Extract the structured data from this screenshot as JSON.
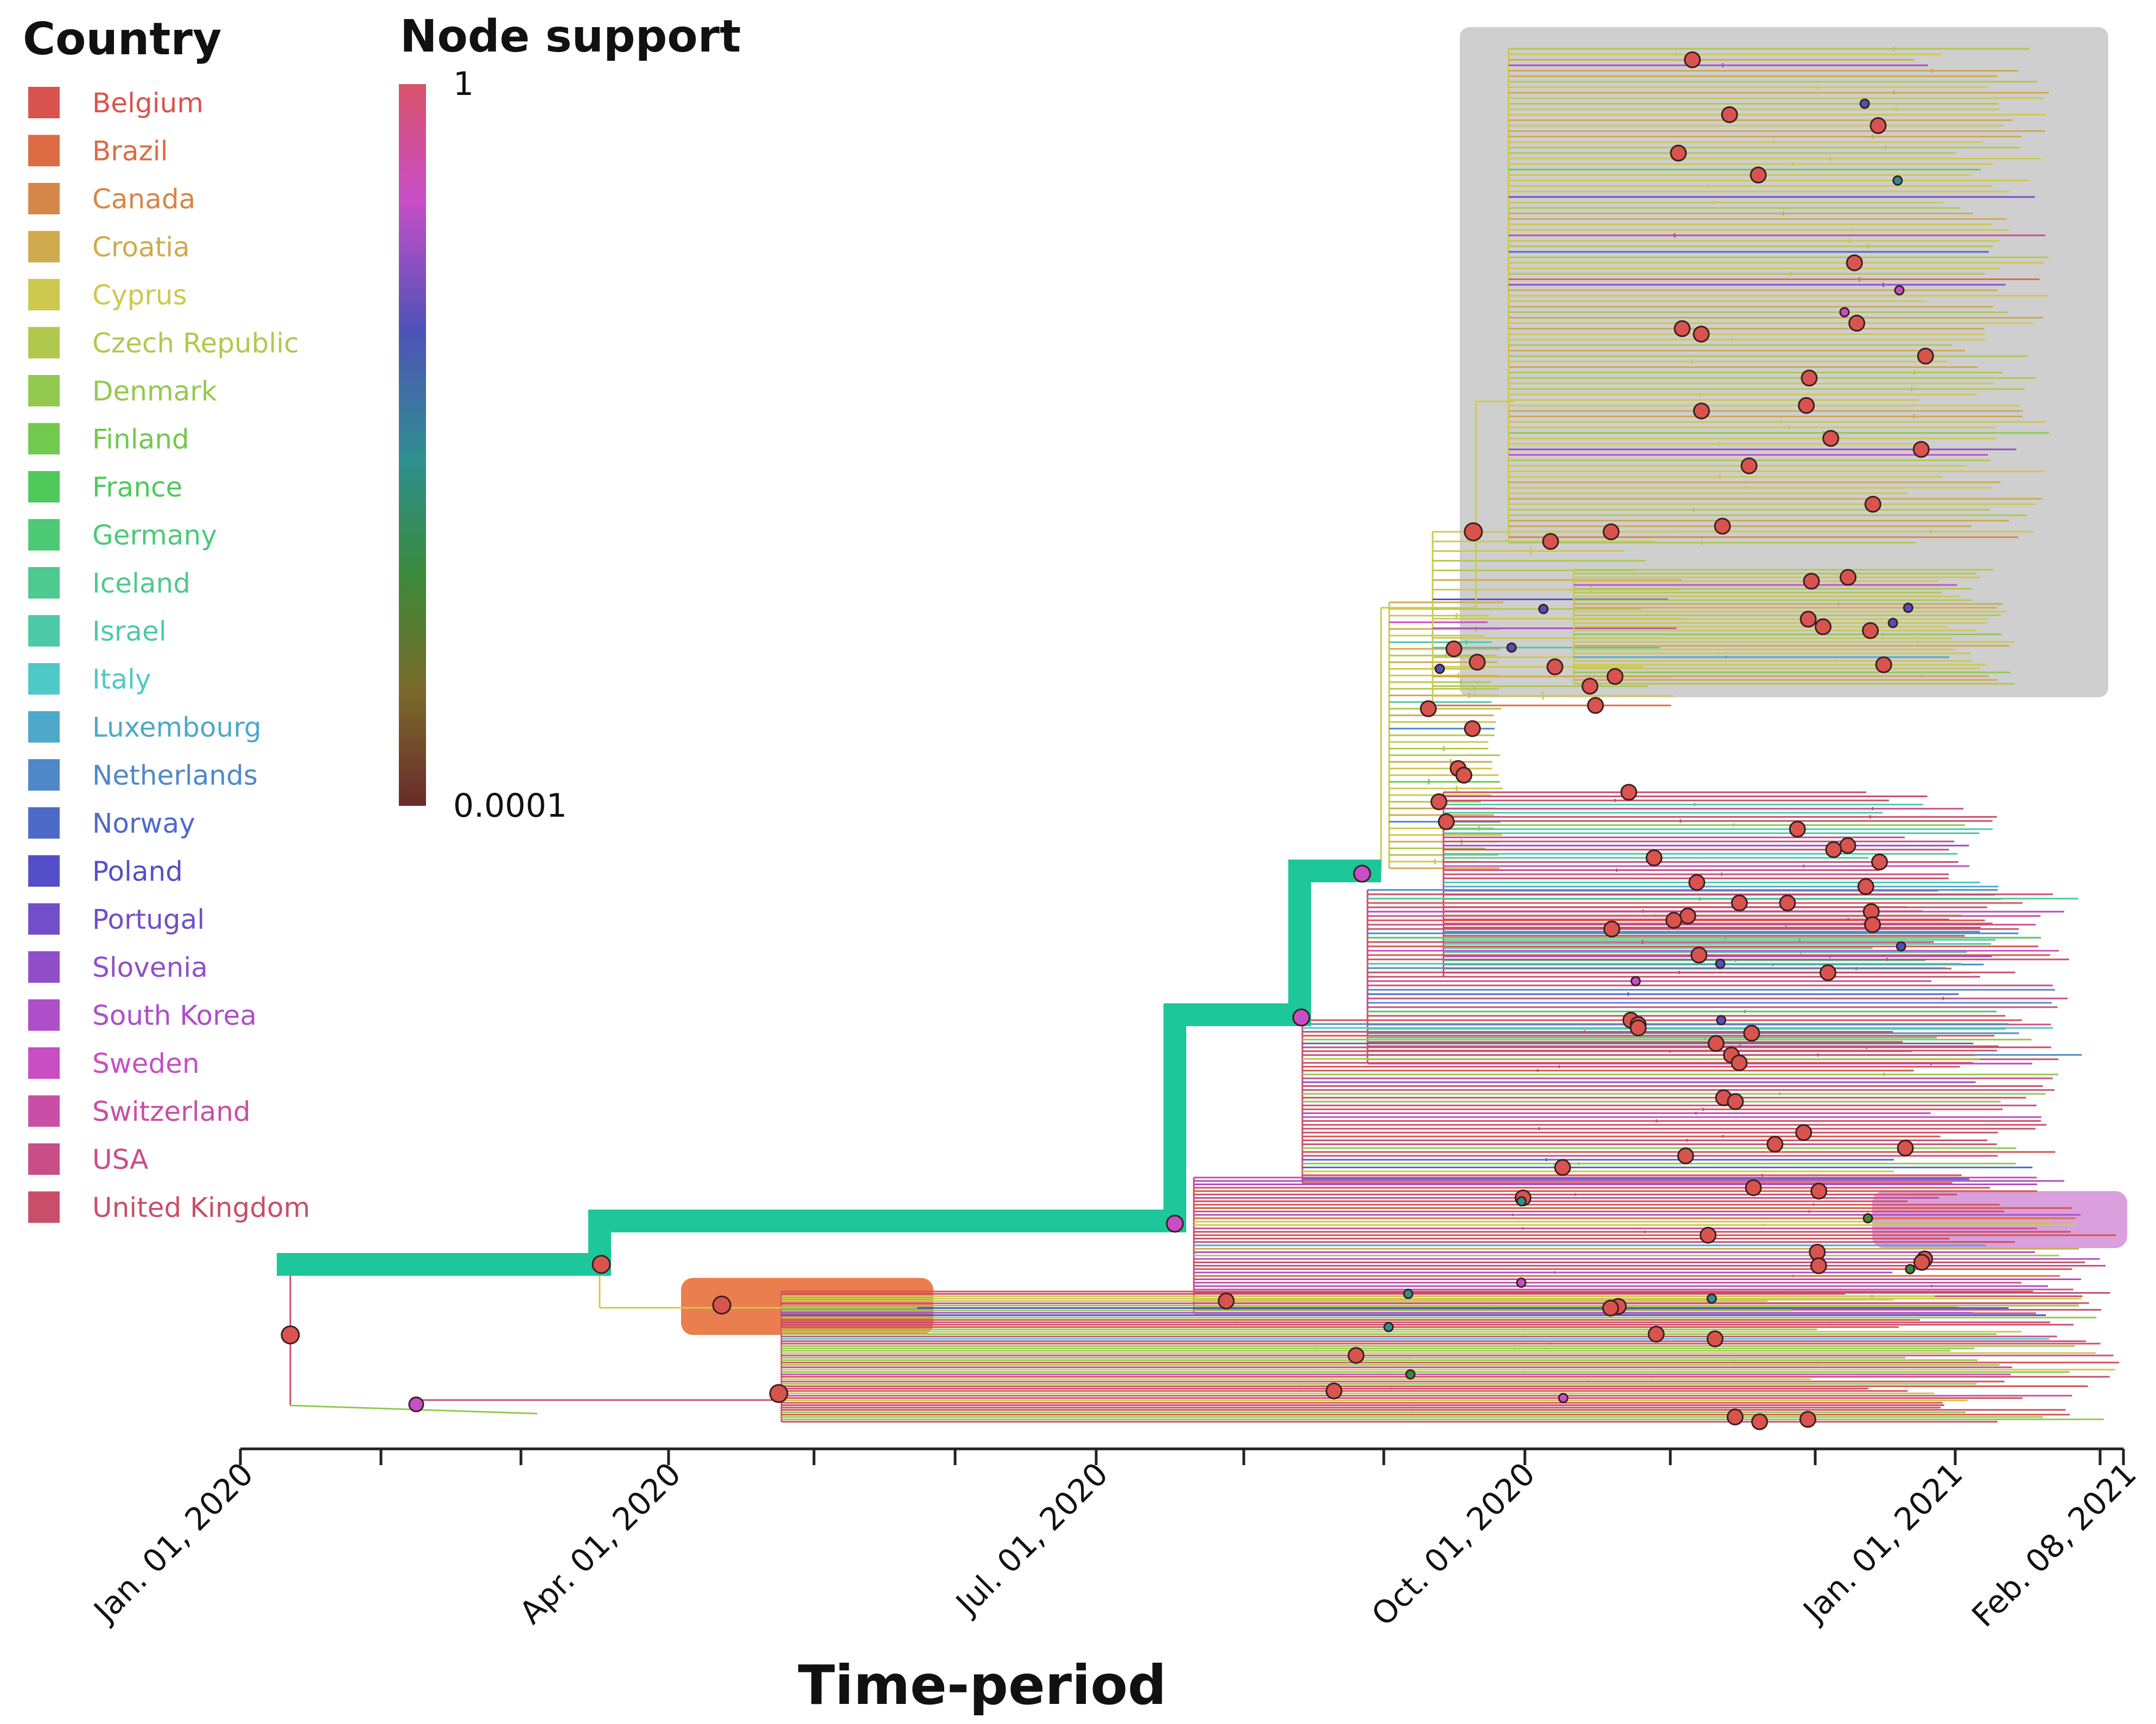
{
  "chart_data": {
    "type": "phylogenetic-tree",
    "xlabel": "Time-period",
    "x_ticks": [
      "Jan. 01, 2020",
      "Apr. 01, 2020",
      "Jul. 01, 2020",
      "Oct. 01, 2020",
      "Jan. 01, 2021",
      "Feb. 08, 2021"
    ],
    "x_range": [
      "Jan. 01, 2020",
      "Feb. 08, 2021"
    ],
    "country_legend": {
      "title": "Country",
      "entries": [
        {
          "name": "Belgium",
          "color": "#d9534f"
        },
        {
          "name": "Brazil",
          "color": "#dd6c45"
        },
        {
          "name": "Canada",
          "color": "#d5874a"
        },
        {
          "name": "Croatia",
          "color": "#cfab4e"
        },
        {
          "name": "Cyprus",
          "color": "#cdc94e"
        },
        {
          "name": "Czech Republic",
          "color": "#b1c84e"
        },
        {
          "name": "Denmark",
          "color": "#93c94f"
        },
        {
          "name": "Finland",
          "color": "#71c94f"
        },
        {
          "name": "France",
          "color": "#4ec95a"
        },
        {
          "name": "Germany",
          "color": "#4ec975"
        },
        {
          "name": "Iceland",
          "color": "#4ec990"
        },
        {
          "name": "Israel",
          "color": "#4ec9a8"
        },
        {
          "name": "Italy",
          "color": "#4ec9c8"
        },
        {
          "name": "Luxembourg",
          "color": "#4ea8c9"
        },
        {
          "name": "Netherlands",
          "color": "#4e88c9"
        },
        {
          "name": "Norway",
          "color": "#4e6ac9"
        },
        {
          "name": "Poland",
          "color": "#554ec9"
        },
        {
          "name": "Portugal",
          "color": "#734ec9"
        },
        {
          "name": "Slovenia",
          "color": "#914ec9"
        },
        {
          "name": "South Korea",
          "color": "#ae4ec9"
        },
        {
          "name": "Sweden",
          "color": "#c94ec4"
        },
        {
          "name": "Switzerland",
          "color": "#c94ea6"
        },
        {
          "name": "USA",
          "color": "#c94e88"
        },
        {
          "name": "United Kingdom",
          "color": "#c94e6a"
        }
      ]
    },
    "node_support_colorbar": {
      "title": "Node support",
      "max_label": "1",
      "min_label": "0.0001",
      "colors": [
        "#d9536a",
        "#c84ec8",
        "#4e52b8",
        "#2f8f8f",
        "#3a8a3a",
        "#7a6a2a",
        "#6a2a2a"
      ]
    },
    "backbone_color": "#1dc79a",
    "highlight_colors": {
      "grey_clade": "#cfcfcf",
      "orange_clade": "#ea7e4f",
      "purple_clade": "#d9a0dd"
    }
  }
}
